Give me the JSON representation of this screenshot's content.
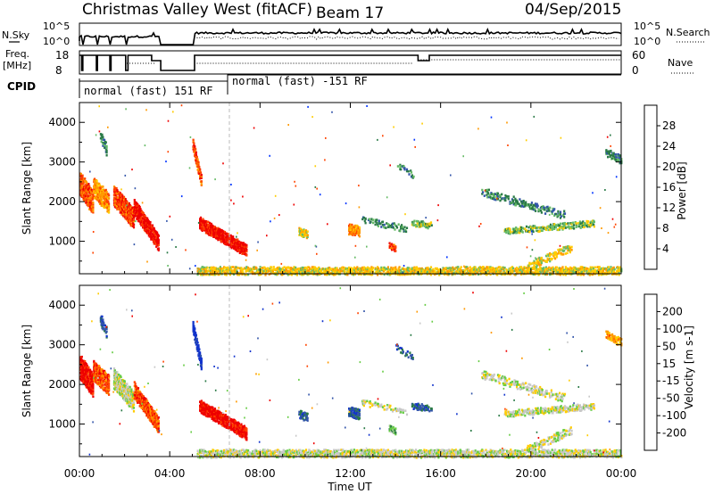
{
  "header": {
    "radar": "Christmas Valley West (fitACF)",
    "beam": "Beam 17",
    "date": "04/Sep/2015"
  },
  "panels": {
    "nsky": {
      "left_label": "N.Sky",
      "right_label": "N.Search",
      "left_ticks": [
        "10^5",
        "10^0"
      ],
      "right_ticks": [
        "10^5",
        "10^0"
      ]
    },
    "freq": {
      "left_label_1": "Freq.",
      "left_label_2": "[MHz]",
      "right_label": "Nave",
      "left_ticks": [
        "18",
        "8"
      ],
      "right_ticks": [
        "60",
        "0"
      ]
    },
    "cpid": {
      "label": "CPID",
      "segments": [
        "normal (fast) 151 RF",
        "normal (fast) -151 RF"
      ]
    }
  },
  "chart_data": [
    {
      "type": "heatmap",
      "name": "power",
      "ylabel": "Slant Range [km]",
      "ylim": [
        180,
        4500
      ],
      "yticks": [
        "1000",
        "2000",
        "3000",
        "4000"
      ],
      "xlim": [
        0,
        24
      ],
      "colorbar": {
        "label": "Power [dB]",
        "ticks": [
          "4",
          "8",
          "12",
          "16",
          "20",
          "24",
          "28"
        ],
        "colors": [
          "#0033ff",
          "#3355aa",
          "#2a7a46",
          "#66bb66",
          "#ffcc00",
          "#ff9900",
          "#ff4400",
          "#ee0000"
        ]
      }
    },
    {
      "type": "heatmap",
      "name": "velocity",
      "ylabel": "Slant Range [km]",
      "ylim": [
        180,
        4500
      ],
      "yticks": [
        "1000",
        "2000",
        "3000",
        "4000"
      ],
      "xlim": [
        0,
        24
      ],
      "colorbar": {
        "label": "Velocity [m s-1]",
        "ticks": [
          "200",
          "100",
          "50",
          "15",
          "-15",
          "-50",
          "-100",
          "-200"
        ],
        "colors": [
          "#1133cc",
          "#3355aa",
          "#2a7a46",
          "#66cc44",
          "#c8c8c8",
          "#ffcc00",
          "#ff9900",
          "#ff4400",
          "#ee0000"
        ]
      }
    }
  ],
  "time_axis": {
    "label": "Time UT",
    "ticks": [
      "00:00",
      "04:00",
      "08:00",
      "12:00",
      "16:00",
      "20:00",
      "00:00"
    ]
  }
}
